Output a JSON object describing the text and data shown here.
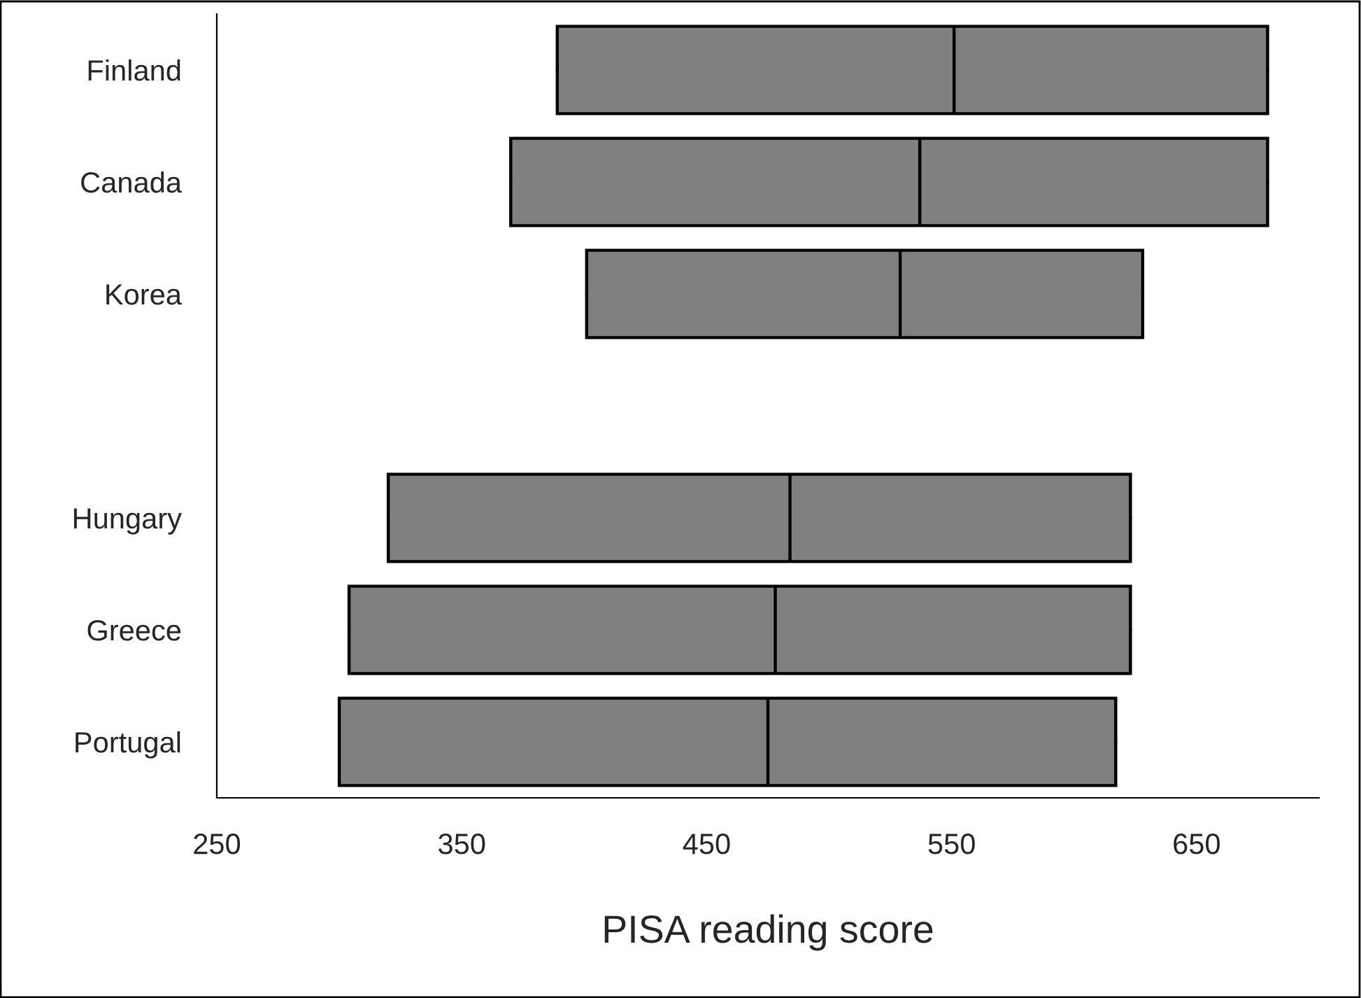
{
  "chart_data": {
    "type": "box",
    "orientation": "horizontal",
    "xlabel": "PISA reading score",
    "categories": [
      "Finland",
      "Canada",
      "Korea",
      null,
      "Hungary",
      "Greece",
      "Portugal"
    ],
    "color": "#808080",
    "boxes": [
      {
        "low": 389,
        "q1": 389,
        "median": 551,
        "q3": 679,
        "high": 679
      },
      {
        "low": 370,
        "q1": 370,
        "median": 537,
        "q3": 679,
        "high": 679
      },
      {
        "low": 401,
        "q1": 401,
        "median": 529,
        "q3": 628,
        "high": 628
      },
      null,
      {
        "low": 320,
        "q1": 320,
        "median": 484,
        "q3": 623,
        "high": 623
      },
      {
        "low": 304,
        "q1": 304,
        "median": 478,
        "q3": 623,
        "high": 623
      },
      {
        "low": 300,
        "q1": 300,
        "median": 475,
        "q3": 617,
        "high": 617
      }
    ],
    "xlim": [
      250,
      700
    ],
    "xticks": [
      250,
      350,
      450,
      550,
      650
    ],
    "grid": false,
    "legend": false
  }
}
